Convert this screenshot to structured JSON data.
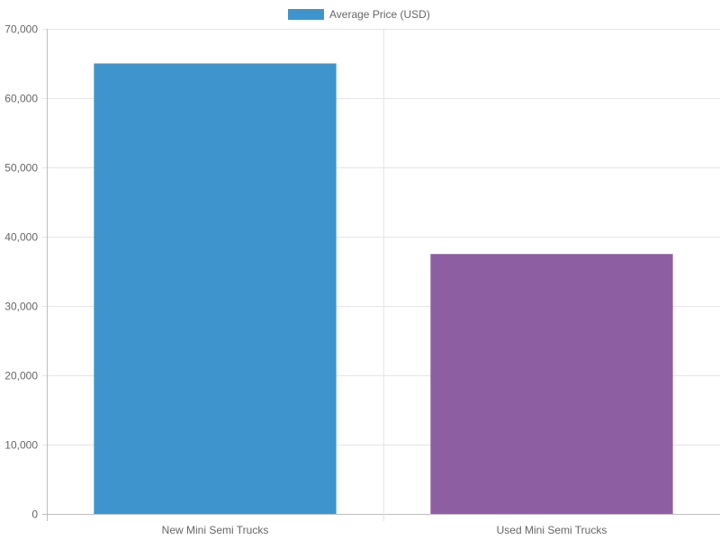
{
  "chart_data": {
    "type": "bar",
    "categories": [
      "New Mini Semi Trucks",
      "Used Mini Semi Trucks"
    ],
    "series": [
      {
        "name": "Average Price (USD)",
        "values": [
          65000,
          37500
        ],
        "colors": [
          "#3e95cd",
          "#8e5ea2"
        ]
      }
    ],
    "ylim": [
      0,
      70000
    ],
    "y_ticks": [
      "0",
      "10,000",
      "20,000",
      "30,000",
      "40,000",
      "50,000",
      "60,000",
      "70,000"
    ],
    "y_tick_values": [
      0,
      10000,
      20000,
      30000,
      40000,
      50000,
      60000,
      70000
    ],
    "legend_position": "top",
    "grid": true
  },
  "legend": {
    "label": "Average Price (USD)",
    "color": "#3e95cd"
  }
}
